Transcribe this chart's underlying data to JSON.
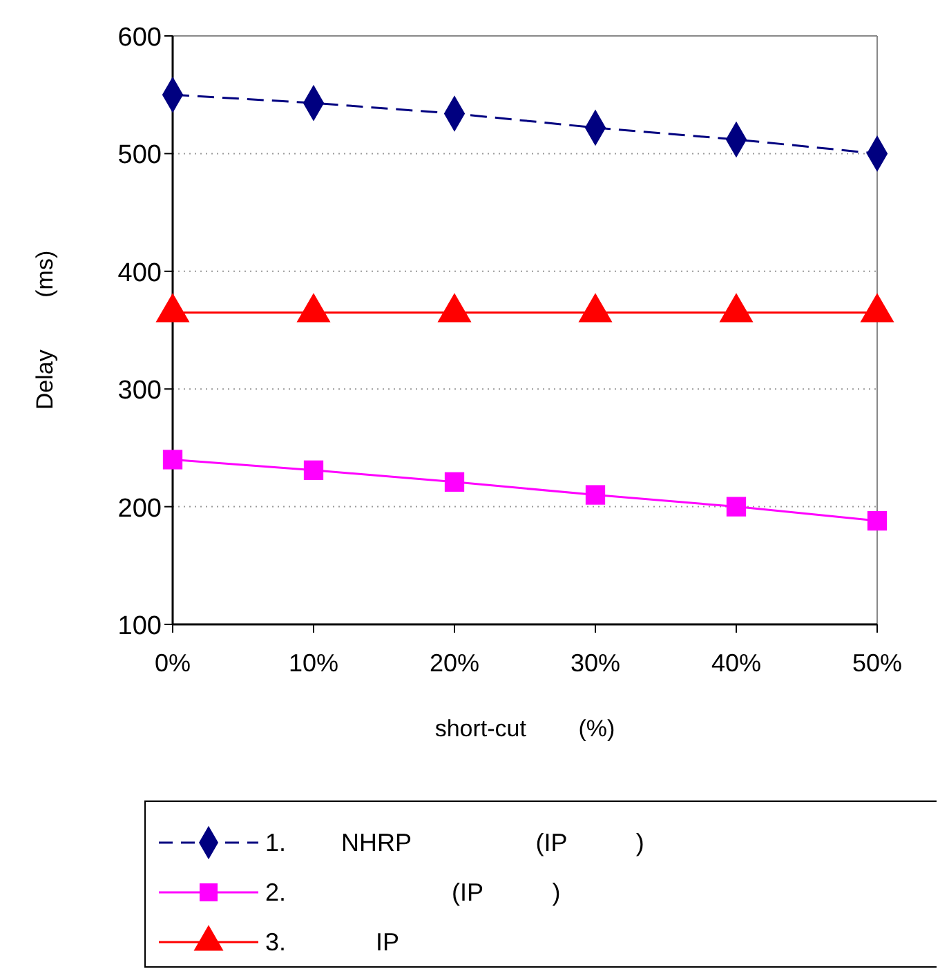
{
  "chart_data": {
    "type": "line",
    "xlabel": "short-cut        (%)",
    "ylabel": "Delay        (ms)",
    "categories": [
      "0%",
      "10%",
      "20%",
      "30%",
      "40%",
      "50%"
    ],
    "ylim": [
      100,
      600
    ],
    "yticks": [
      100,
      200,
      300,
      400,
      500,
      600
    ],
    "grid": "y",
    "legend": "bottom",
    "series": [
      {
        "name": "1.        NHRP                  (IP          )",
        "color": "#000080",
        "marker": "diamond",
        "line_style": "dashed",
        "values": [
          550,
          543,
          534,
          522,
          512,
          500
        ]
      },
      {
        "name": "2.                        (IP          )",
        "color": "#ff00ff",
        "marker": "square",
        "line_style": "solid",
        "values": [
          240,
          231,
          221,
          210,
          200,
          188
        ]
      },
      {
        "name": "3.             IP",
        "color": "#ff0000",
        "marker": "triangle",
        "line_style": "solid",
        "values": [
          365,
          365,
          365,
          365,
          365,
          365
        ]
      }
    ]
  }
}
